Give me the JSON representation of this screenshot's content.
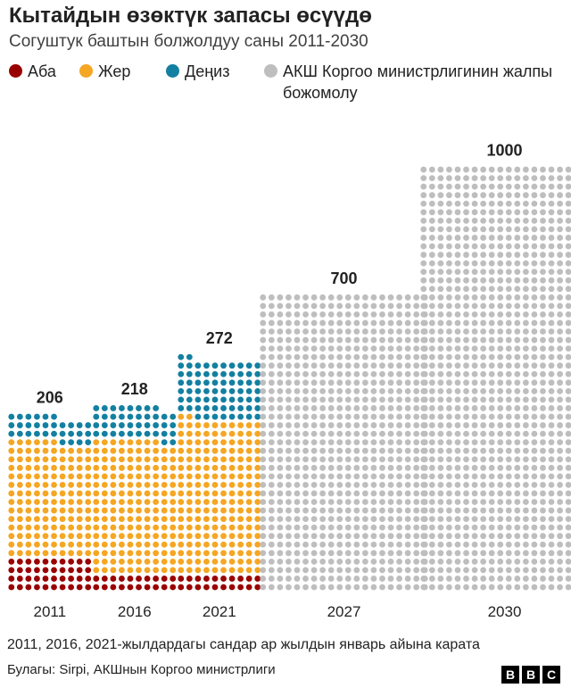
{
  "title": "Кытайдын өзөктүк запасы өсүүдө",
  "subtitle": "Согуштук баштын болжолдуу саны 2011-2030",
  "legend": [
    {
      "label": "Аба",
      "color": "#990000"
    },
    {
      "label": "Жер",
      "color": "#F5A623"
    },
    {
      "label": "Деңиз",
      "color": "#1380A1"
    },
    {
      "label": "АКШ Коргоо министрлигинин жалпы божомолу",
      "color": "#BEBEBE"
    }
  ],
  "chart_data": {
    "type": "waffle",
    "title": "Кытайдын өзөктүк запасы өсүүдө",
    "subtitle": "Согуштук баштын болжолдуу саны 2011-2030",
    "unit": "1 dot = 1 warhead",
    "categories": [
      "2011",
      "2016",
      "2021",
      "2027",
      "2030"
    ],
    "totals": [
      206,
      218,
      272,
      700,
      1000
    ],
    "total_labels": [
      "206",
      "218",
      "272",
      "700",
      "1000"
    ],
    "series": [
      {
        "name": "Аба",
        "color": "#990000",
        "values": [
          40,
          20,
          20,
          0,
          0
        ]
      },
      {
        "name": "Жер",
        "color": "#F5A623",
        "values": [
          136,
          158,
          182,
          0,
          0
        ]
      },
      {
        "name": "Деңиз",
        "color": "#1380A1",
        "values": [
          30,
          40,
          70,
          0,
          0
        ]
      },
      {
        "name": "АКШ Коргоо министрлигинин жалпы божомолу",
        "color": "#BEBEBE",
        "values": [
          0,
          0,
          0,
          700,
          1000
        ]
      }
    ]
  },
  "footnote": "2011, 2016, 2021-жылдардагы сандар ар жылдын январь айына карата",
  "source": "Булагы: Sirpi, АКШнын Коргоо министрлиги",
  "brand": {
    "letters": [
      "B",
      "B",
      "C"
    ]
  }
}
